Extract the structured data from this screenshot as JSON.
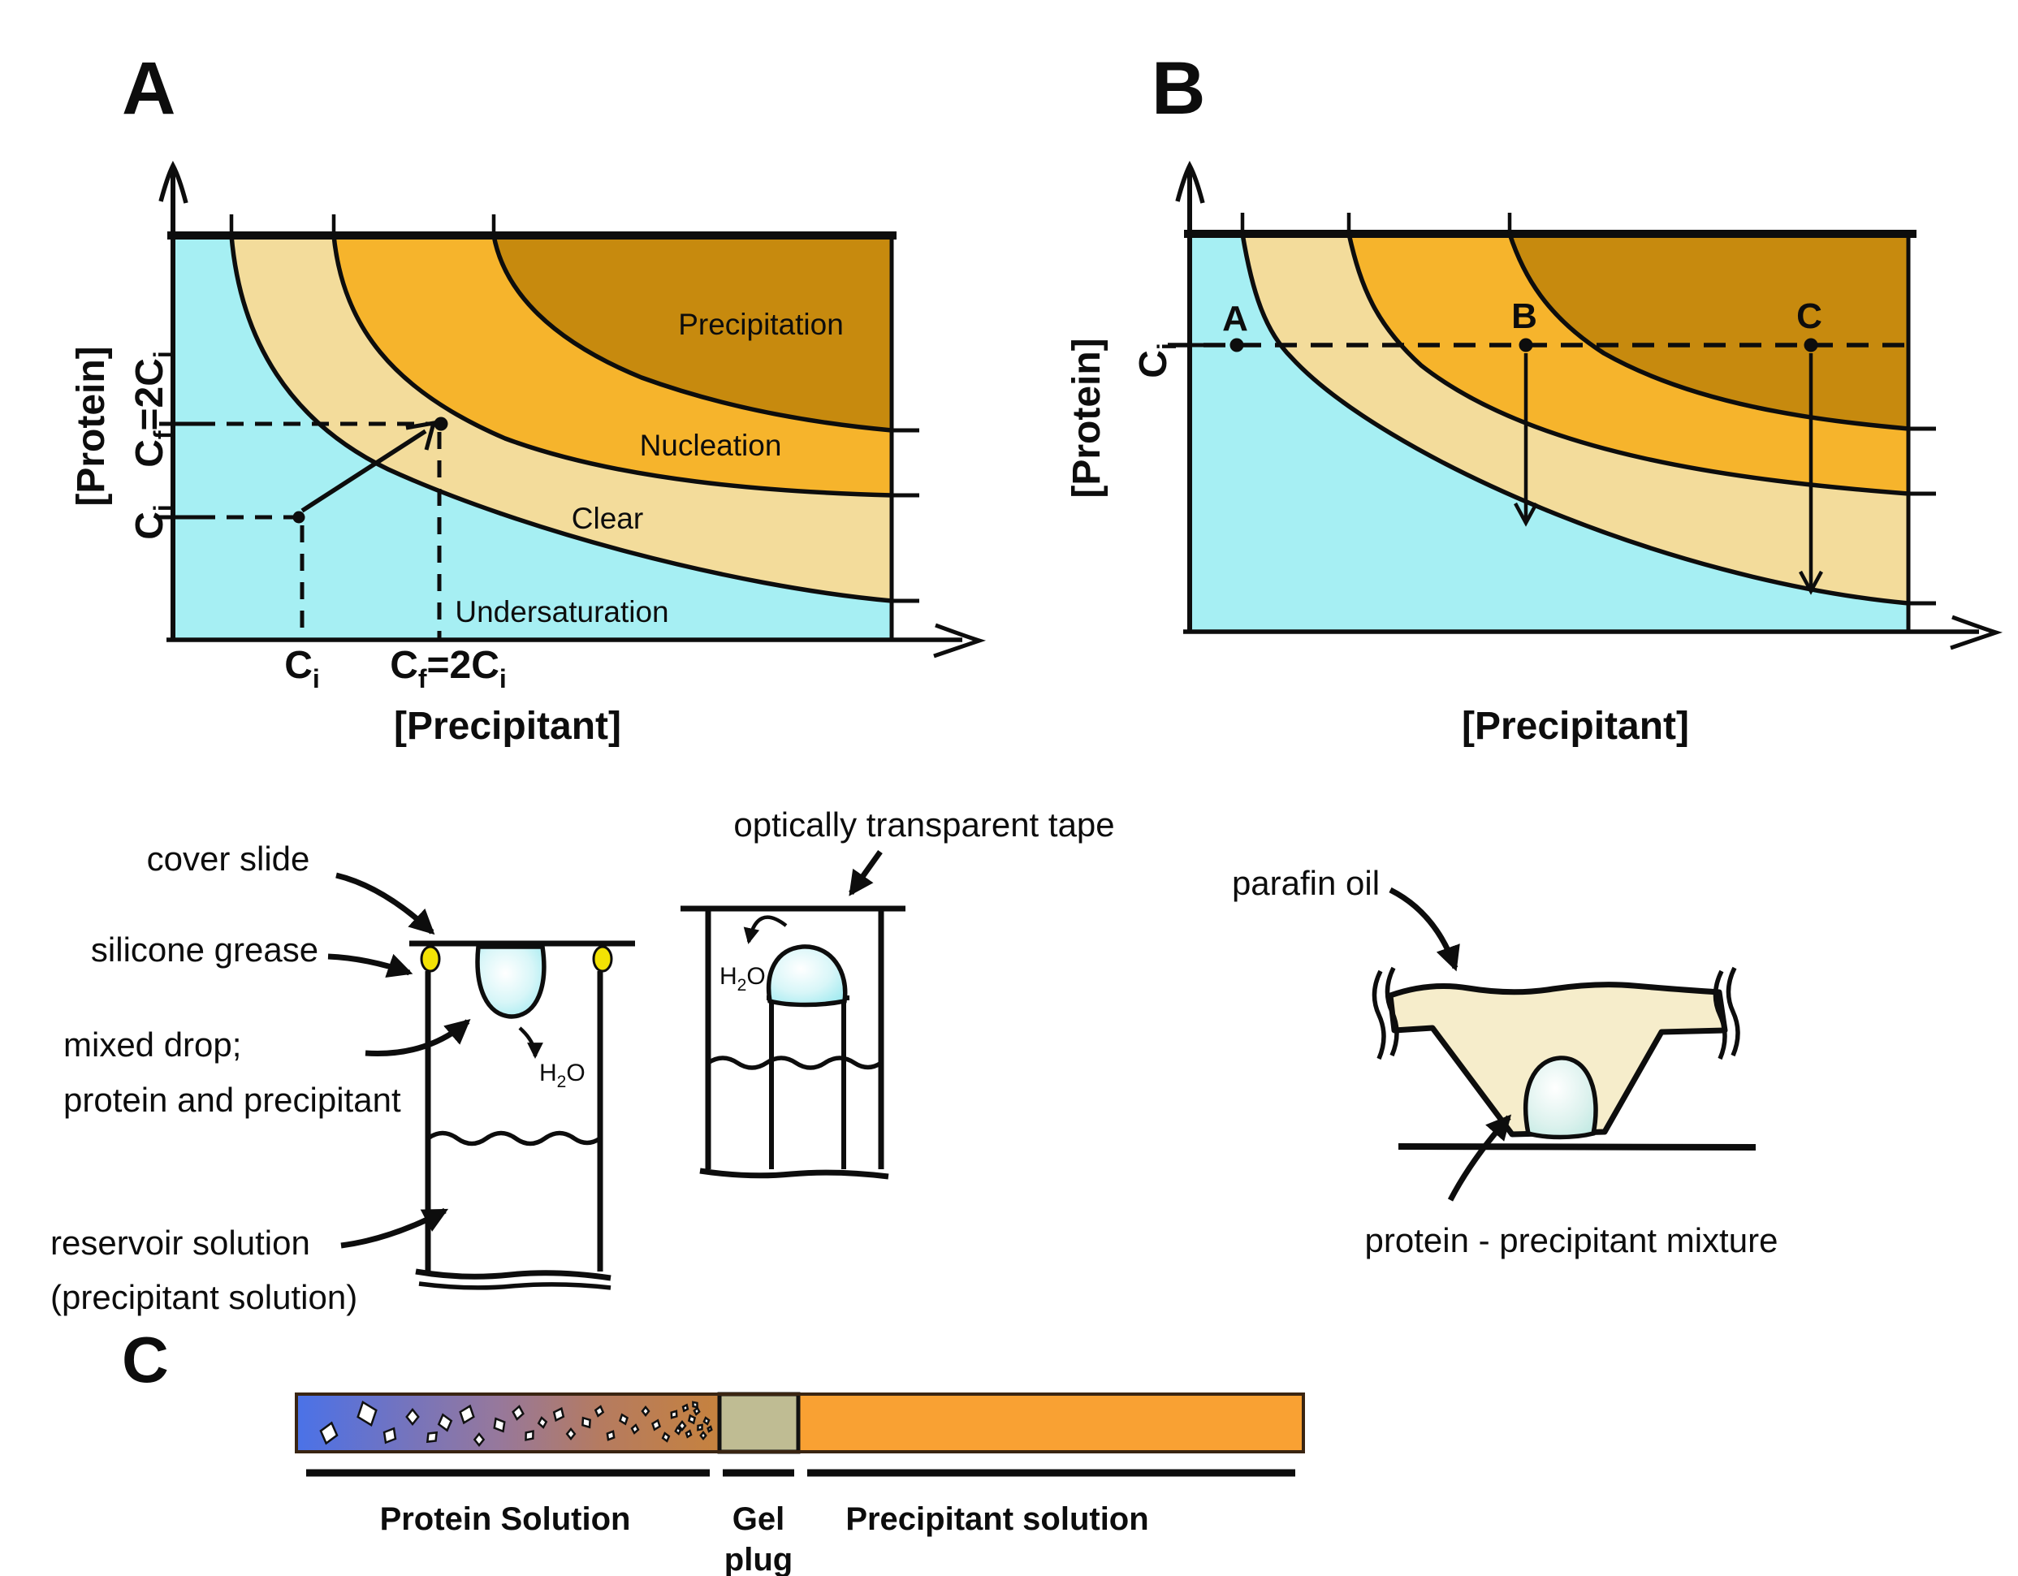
{
  "figure": {
    "panel_a": {
      "label": "A",
      "y_axis_title": "[Protein]",
      "x_axis_title": "[Precipitant]",
      "regions": {
        "precipitation": "Precipitation",
        "nucleation": "Nucleation",
        "clear": "Clear",
        "undersaturation": "Undersaturation"
      },
      "cf_label": {
        "c": "C",
        "sub_f": "f",
        "eq": "=2C",
        "sub_i": "i"
      },
      "ci_label": {
        "c": "C",
        "sub_i": "i"
      }
    },
    "panel_b": {
      "label": "B",
      "y_axis_title": "[Protein]",
      "x_axis_title": "[Precipitant]",
      "ci_label": {
        "c": "C",
        "sub_i": "i"
      },
      "point_a": "A",
      "point_b": "B",
      "point_c": "C"
    },
    "vapor_diffusion": {
      "cover_slide": "cover slide",
      "silicone_grease": "silicone grease",
      "mixed_drop_l1": "mixed drop;",
      "mixed_drop_l2": "protein and precipitant",
      "reservoir_l1": "reservoir solution",
      "reservoir_l2": "(precipitant solution)",
      "tape": "optically transparent tape",
      "h2o": {
        "h": "H",
        "sub": "2",
        "o": "O"
      }
    },
    "microbatch": {
      "oil": "parafin oil",
      "mixture": "protein - precipitant mixture"
    },
    "panel_c": {
      "label": "C",
      "protein": "Protein Solution",
      "gel_l1": "Gel",
      "gel_l2": "plug",
      "precipitant": "Precipitant solution",
      "crystals": [
        [
          405,
          1765,
          13,
          15
        ],
        [
          452,
          1741,
          15,
          -20
        ],
        [
          480,
          1768,
          10,
          30
        ],
        [
          508,
          1745,
          9,
          0
        ],
        [
          532,
          1770,
          8,
          45
        ],
        [
          548,
          1752,
          10,
          -15
        ],
        [
          575,
          1742,
          11,
          20
        ],
        [
          590,
          1773,
          7,
          0
        ],
        [
          615,
          1755,
          9,
          -30
        ],
        [
          638,
          1740,
          8,
          10
        ],
        [
          652,
          1768,
          7,
          40
        ],
        [
          668,
          1752,
          6,
          -10
        ],
        [
          688,
          1742,
          8,
          25
        ],
        [
          703,
          1766,
          6,
          0
        ],
        [
          722,
          1752,
          7,
          -35
        ],
        [
          738,
          1738,
          6,
          15
        ],
        [
          752,
          1768,
          6,
          30
        ],
        [
          768,
          1748,
          6,
          -20
        ],
        [
          782,
          1760,
          5,
          10
        ],
        [
          795,
          1738,
          5,
          0
        ],
        [
          808,
          1755,
          6,
          20
        ],
        [
          820,
          1770,
          5,
          -15
        ],
        [
          830,
          1742,
          5,
          35
        ],
        [
          840,
          1756,
          5,
          0
        ],
        [
          848,
          1766,
          4,
          20
        ],
        [
          852,
          1748,
          5,
          -25
        ],
        [
          858,
          1738,
          4,
          10
        ],
        [
          862,
          1758,
          4,
          40
        ],
        [
          866,
          1768,
          4,
          0
        ],
        [
          870,
          1750,
          4,
          -15
        ],
        [
          874,
          1760,
          3,
          20
        ],
        [
          856,
          1730,
          4,
          -40
        ],
        [
          844,
          1734,
          4,
          25
        ],
        [
          835,
          1762,
          4,
          -10
        ]
      ]
    },
    "colors": {
      "undersaturation": "#A6EFF3",
      "clear": "#F3DC9B",
      "nucleation": "#F6B42C",
      "precipitation": "#C78A0E",
      "grease_yellow": "#F2E204",
      "oil_cream": "#F6EDCB",
      "bar_blue": "#4A72E8",
      "bar_brown": "#C6823E",
      "gel_plug": "#BFBC93",
      "precipitant_orange": "#F9A133",
      "gel_text_gray": "#8D9E93",
      "bar_border": "#3A2512"
    }
  }
}
